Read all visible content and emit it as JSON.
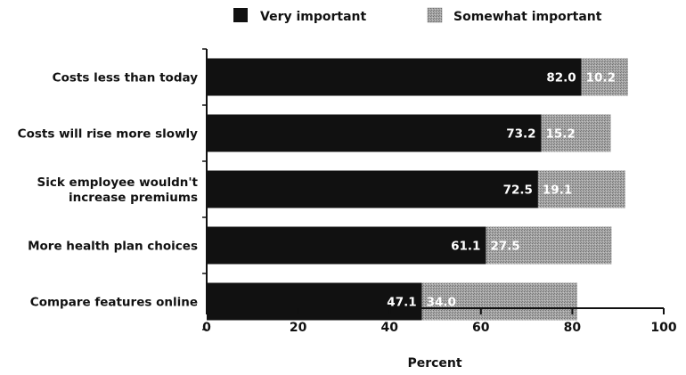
{
  "chart_data": {
    "type": "bar",
    "orientation": "horizontal",
    "stacked": true,
    "categories": [
      "Costs less than today",
      "Costs will rise more slowly",
      "Sick employee wouldn't increase premiums",
      "More health plan choices",
      "Compare features online"
    ],
    "series": [
      {
        "name": "Very important",
        "values": [
          82.0,
          73.2,
          72.5,
          61.1,
          47.1
        ],
        "color": "#111111"
      },
      {
        "name": "Somewhat important",
        "values": [
          10.2,
          15.2,
          19.1,
          27.5,
          34.0
        ],
        "color": "#9a9a9a"
      }
    ],
    "xlabel": "Percent",
    "ylabel": "",
    "title": "",
    "xlim": [
      0,
      100
    ],
    "xticks": [
      0,
      20,
      40,
      60,
      80,
      100
    ],
    "legend_position": "top",
    "grid": false
  }
}
